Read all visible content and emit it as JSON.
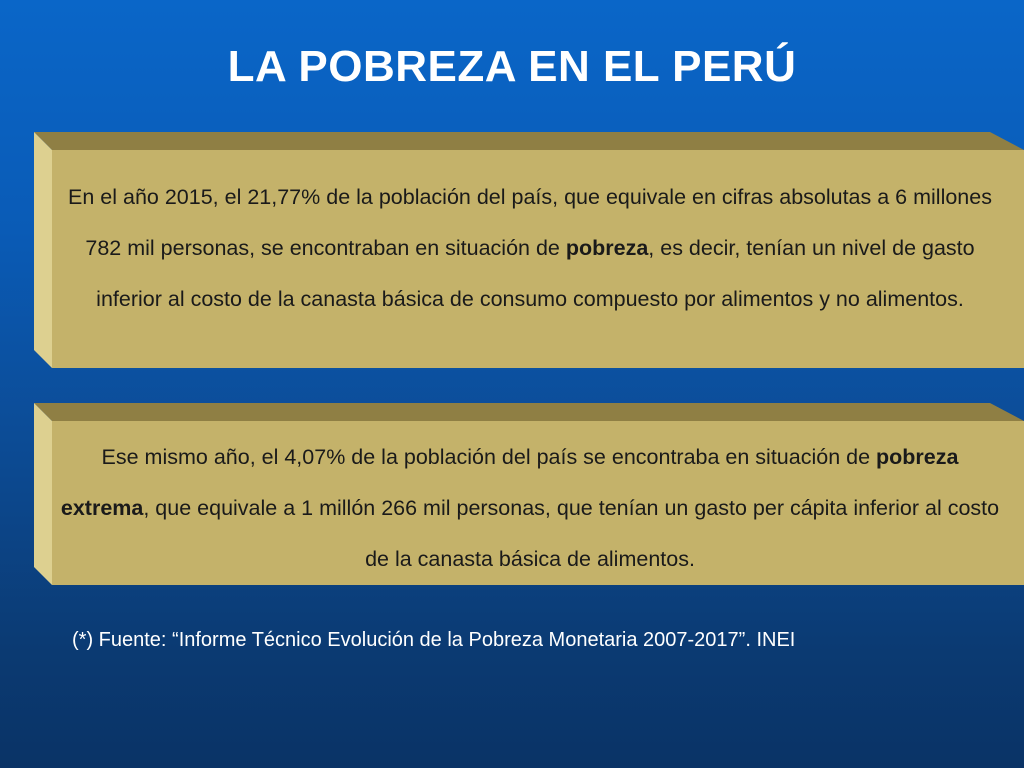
{
  "slide": {
    "title": "LA POBREZA EN EL PERÚ"
  },
  "box1": {
    "text_before": "En el año 2015, el 21,77% de la población del país, que equivale en cifras absolutas a 6 millones 782 mil personas, se encontraban en situación de ",
    "bold": "pobreza",
    "text_after": ", es decir, tenían un nivel de gasto inferior al costo de la canasta básica de consumo compuesto por alimentos y no alimentos."
  },
  "box2": {
    "text_before": "Ese mismo año, el 4,07% de la población del país se encontraba en situación de ",
    "bold": "pobreza extrema",
    "text_after": ", que equivale a 1 millón 266 mil personas, que tenían un gasto per cápita inferior al costo de la canasta básica de alimentos."
  },
  "footnote": "(*) Fuente: “Informe Técnico Evolución de la Pobreza Monetaria 2007-2017”. INEI",
  "colors": {
    "box_face": "#c4b26a",
    "box_top": "#8f7f44",
    "box_left": "#ddd090",
    "title_text": "#ffffff"
  }
}
